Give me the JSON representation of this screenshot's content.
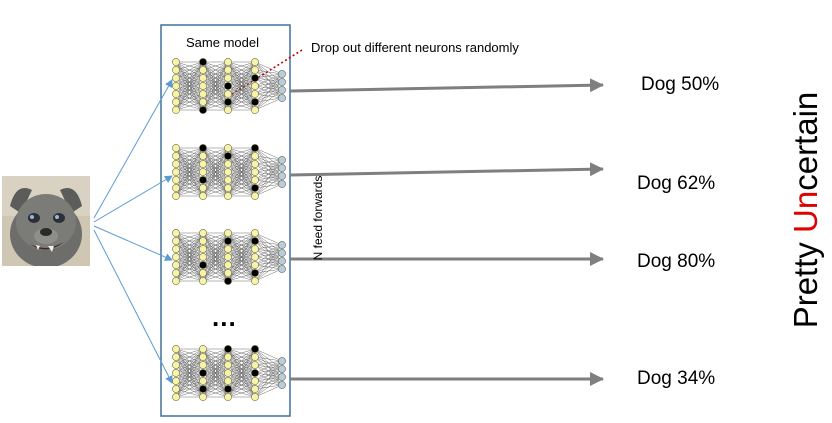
{
  "model_label": "Same model",
  "dropout_annotation": "Drop out different neurons randomly",
  "passes_label": "N feed forwards",
  "ellipsis": "...",
  "results": [
    {
      "label": "Dog 50%"
    },
    {
      "label": "Dog 62%"
    },
    {
      "label": "Dog 80%"
    },
    {
      "label": "Dog 34%"
    }
  ],
  "verdict": {
    "prefix": "Pretty ",
    "highlight": "Un",
    "suffix": "certain"
  },
  "colors": {
    "box_border": "#41719c",
    "input_arrow": "#5b9bd5",
    "output_arrow": "#7f7f7f",
    "neuron_active": "#f7f3a8",
    "neuron_dropped": "#000000",
    "neuron_output": "#b8cce4",
    "annotation_dotted": "#c00000",
    "highlight": "#e00000"
  },
  "networks": [
    {
      "dropped": [
        [],
        [],
        [
          0,
          6
        ],
        [
          3,
          5
        ],
        [
          2,
          5
        ],
        []
      ]
    },
    {
      "dropped": [
        [],
        [],
        [
          0,
          4
        ],
        [
          1
        ],
        [
          0,
          5
        ],
        []
      ]
    },
    {
      "dropped": [
        [],
        [],
        [
          4
        ],
        [
          1,
          6
        ],
        [
          1,
          5
        ],
        []
      ]
    },
    {
      "dropped": [
        [],
        [],
        [
          3,
          5
        ],
        [
          0,
          5
        ],
        [
          0,
          3
        ],
        []
      ]
    }
  ]
}
